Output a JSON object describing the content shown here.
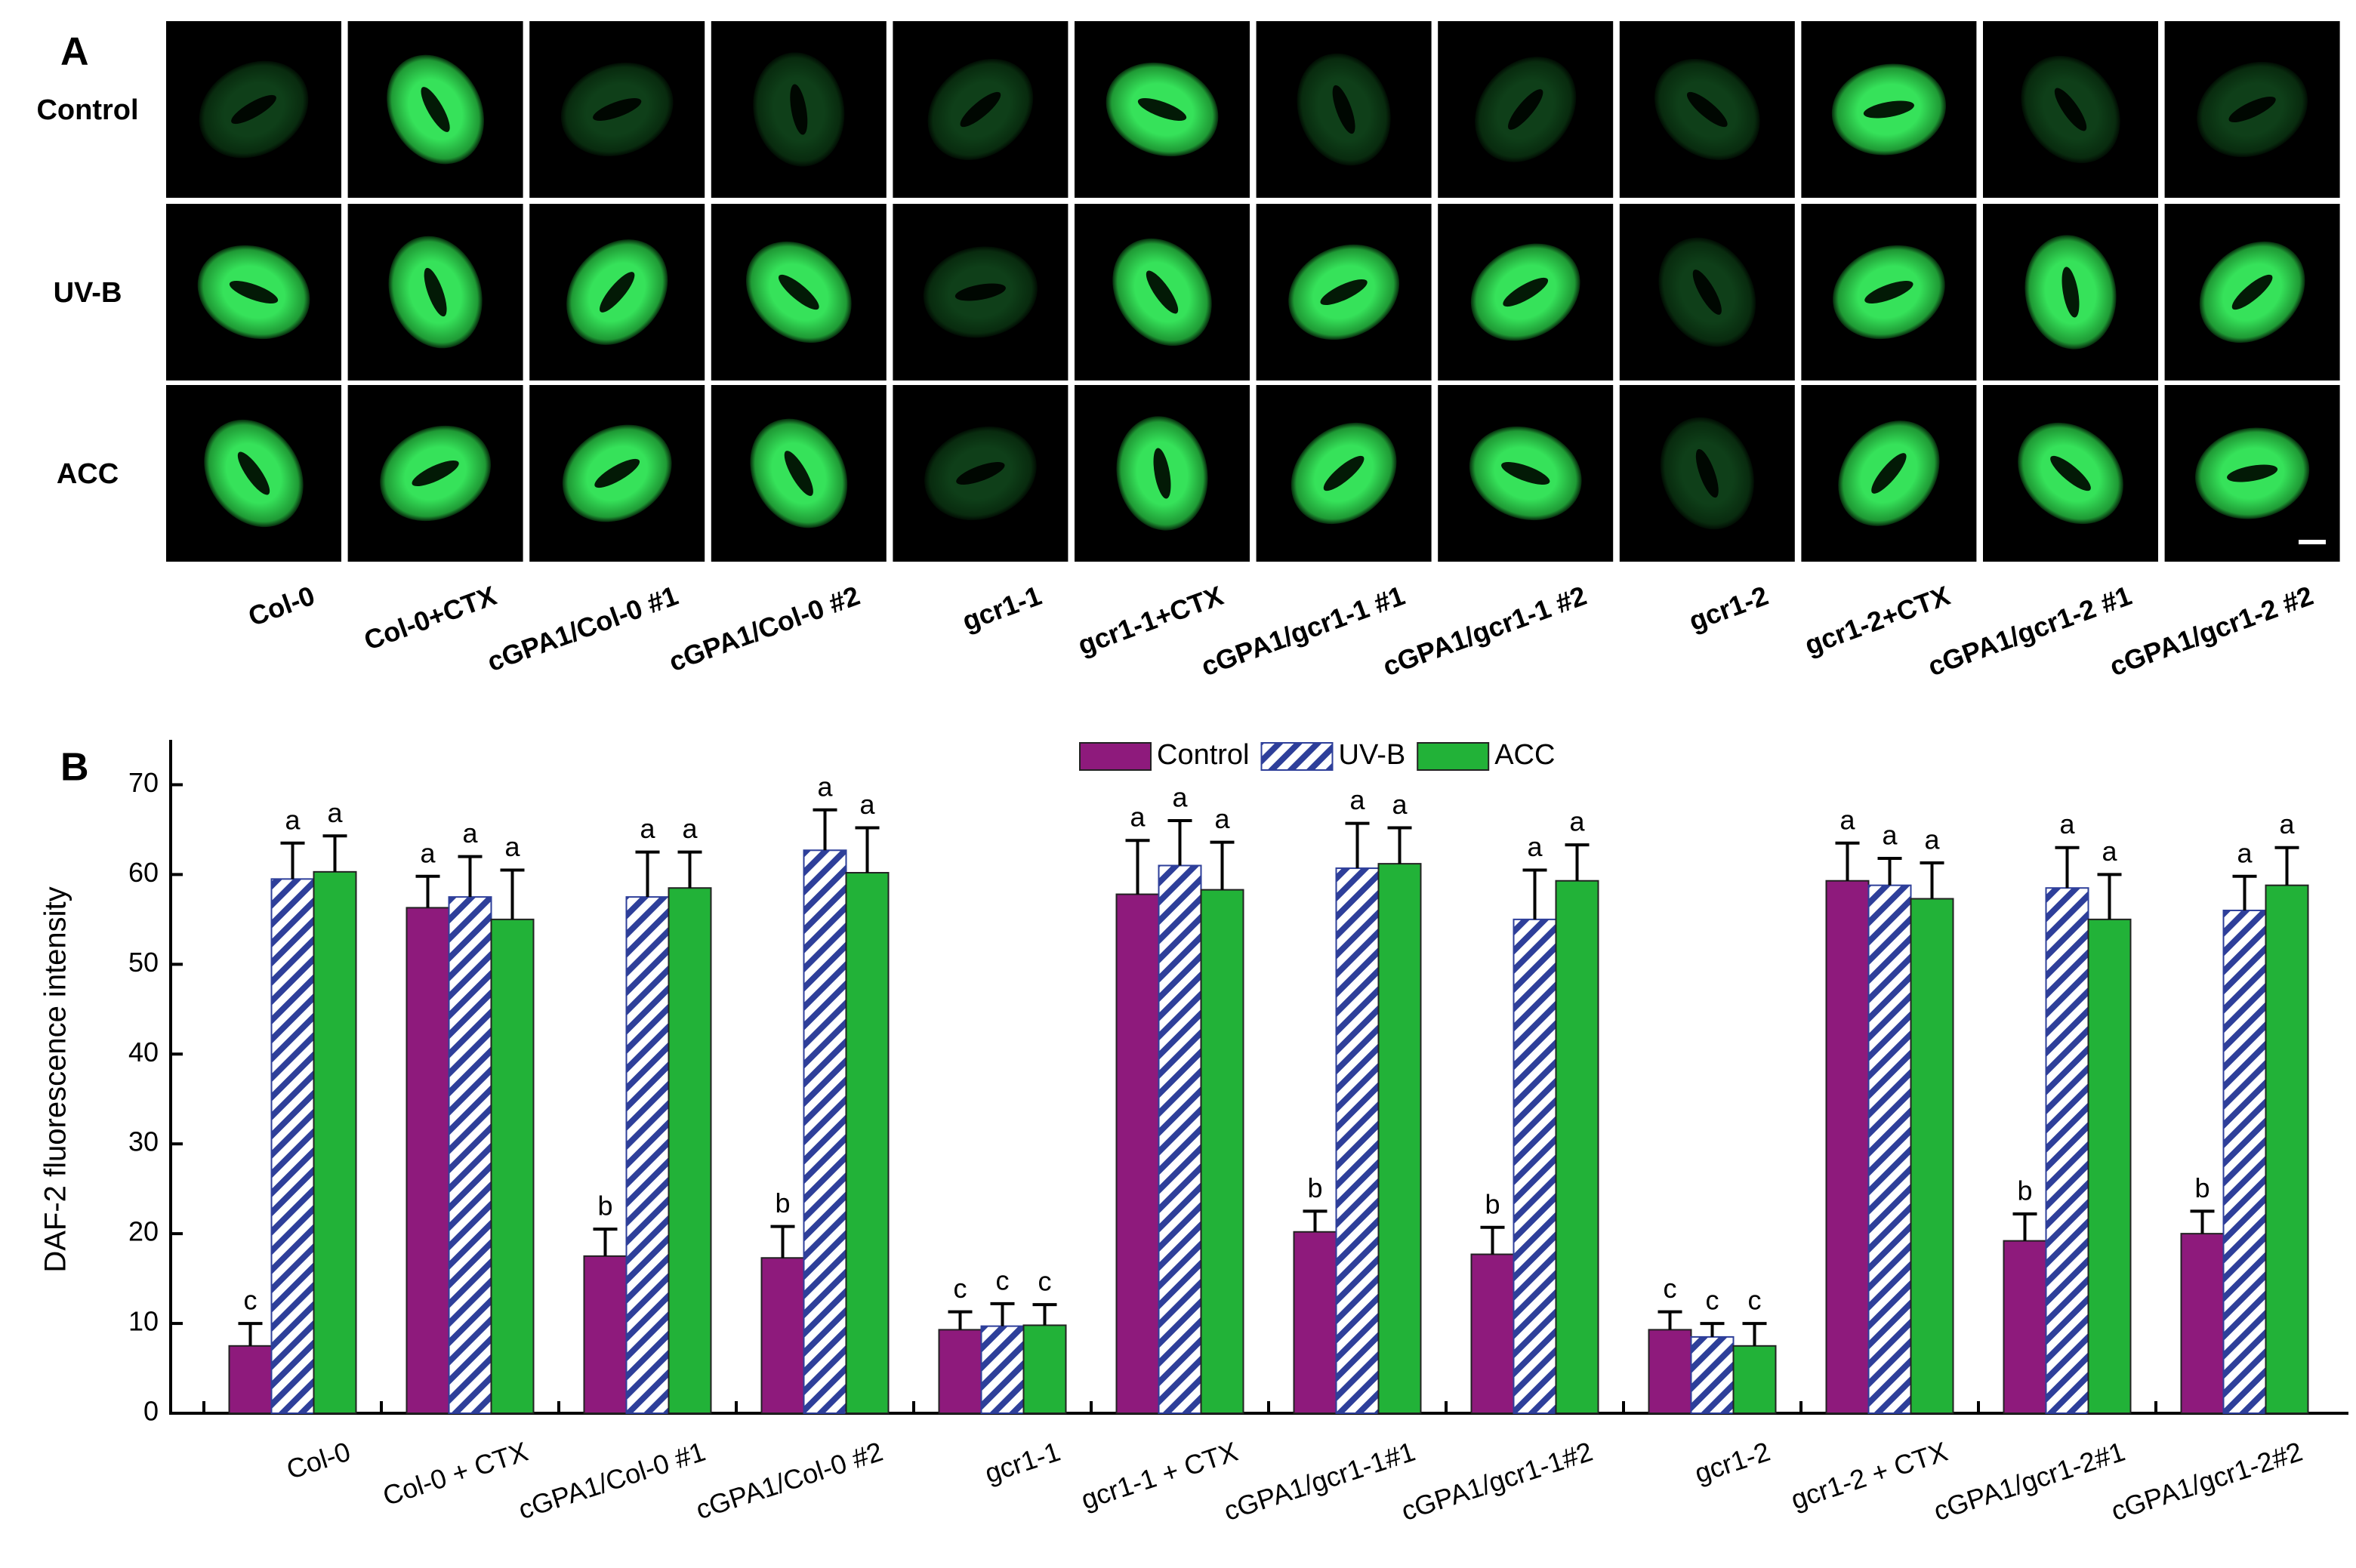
{
  "panel_a": {
    "label": "A",
    "rows": [
      "Control",
      "UV-B",
      "ACC"
    ],
    "columns": [
      "Col-0",
      "Col-0+CTX",
      "cGPA1/Col-0 #1",
      "cGPA1/Col-0 #2",
      "gcr1-1",
      "gcr1-1+CTX",
      "cGPA1/gcr1-1 #1",
      "cGPA1/gcr1-1 #2",
      "gcr1-2",
      "gcr1-2+CTX",
      "cGPA1/gcr1-2 #1",
      "cGPA1/gcr1-2 #2"
    ]
  },
  "chart_data": {
    "type": "bar",
    "panel_label": "B",
    "y_label": "DAF-2 fluorescence intensity",
    "categories": [
      "Col-0",
      "Col-0 + CTX",
      "cGPA1/Col-0 #1",
      "cGPA1/Col-0 #2",
      "gcr1-1",
      "gcr1-1 + CTX",
      "cGPA1/gcr1-1#1",
      "cGPA1/gcr1-1#2",
      "gcr1-2",
      "gcr1-2 + CTX",
      "cGPA1/gcr1-2#1",
      "cGPA1/gcr1-2#2"
    ],
    "series": [
      {
        "name": "Control",
        "color": "#8e1a7c",
        "values": [
          7.5,
          56.3,
          17.5,
          17.3,
          9.3,
          57.8,
          20.2,
          17.7,
          9.3,
          59.3,
          19.2,
          20.0
        ],
        "errors": [
          2.5,
          3.5,
          3.0,
          3.5,
          2.0,
          6.0,
          2.3,
          3.0,
          2.0,
          4.2,
          3.0,
          2.5
        ],
        "letters": [
          "c",
          "a",
          "b",
          "b",
          "c",
          "a",
          "b",
          "b",
          "c",
          "a",
          "b",
          "b"
        ]
      },
      {
        "name": "UV-B",
        "color": "#2e3f9a",
        "hatch": true,
        "values": [
          59.5,
          57.5,
          57.5,
          62.7,
          9.7,
          61.0,
          60.7,
          55.0,
          8.5,
          58.8,
          58.5,
          56.0
        ],
        "errors": [
          4.0,
          4.5,
          5.0,
          4.5,
          2.5,
          5.0,
          5.0,
          5.5,
          1.5,
          3.0,
          4.5,
          3.8
        ],
        "letters": [
          "a",
          "a",
          "a",
          "a",
          "c",
          "a",
          "a",
          "a",
          "c",
          "a",
          "a",
          "a"
        ]
      },
      {
        "name": "ACC",
        "color": "#22b238",
        "values": [
          60.3,
          55.0,
          58.5,
          60.2,
          9.8,
          58.3,
          61.2,
          59.3,
          7.5,
          57.3,
          55.0,
          58.8
        ],
        "errors": [
          4.0,
          5.5,
          4.0,
          5.0,
          2.3,
          5.3,
          4.0,
          4.0,
          2.5,
          4.0,
          5.0,
          4.2
        ],
        "letters": [
          "a",
          "a",
          "a",
          "a",
          "c",
          "a",
          "a",
          "a",
          "c",
          "a",
          "a",
          "a"
        ]
      }
    ],
    "ylim": [
      0,
      75
    ],
    "yticks": [
      0,
      10,
      20,
      30,
      40,
      50,
      60,
      70
    ],
    "legend": "top-center",
    "grid": false
  }
}
